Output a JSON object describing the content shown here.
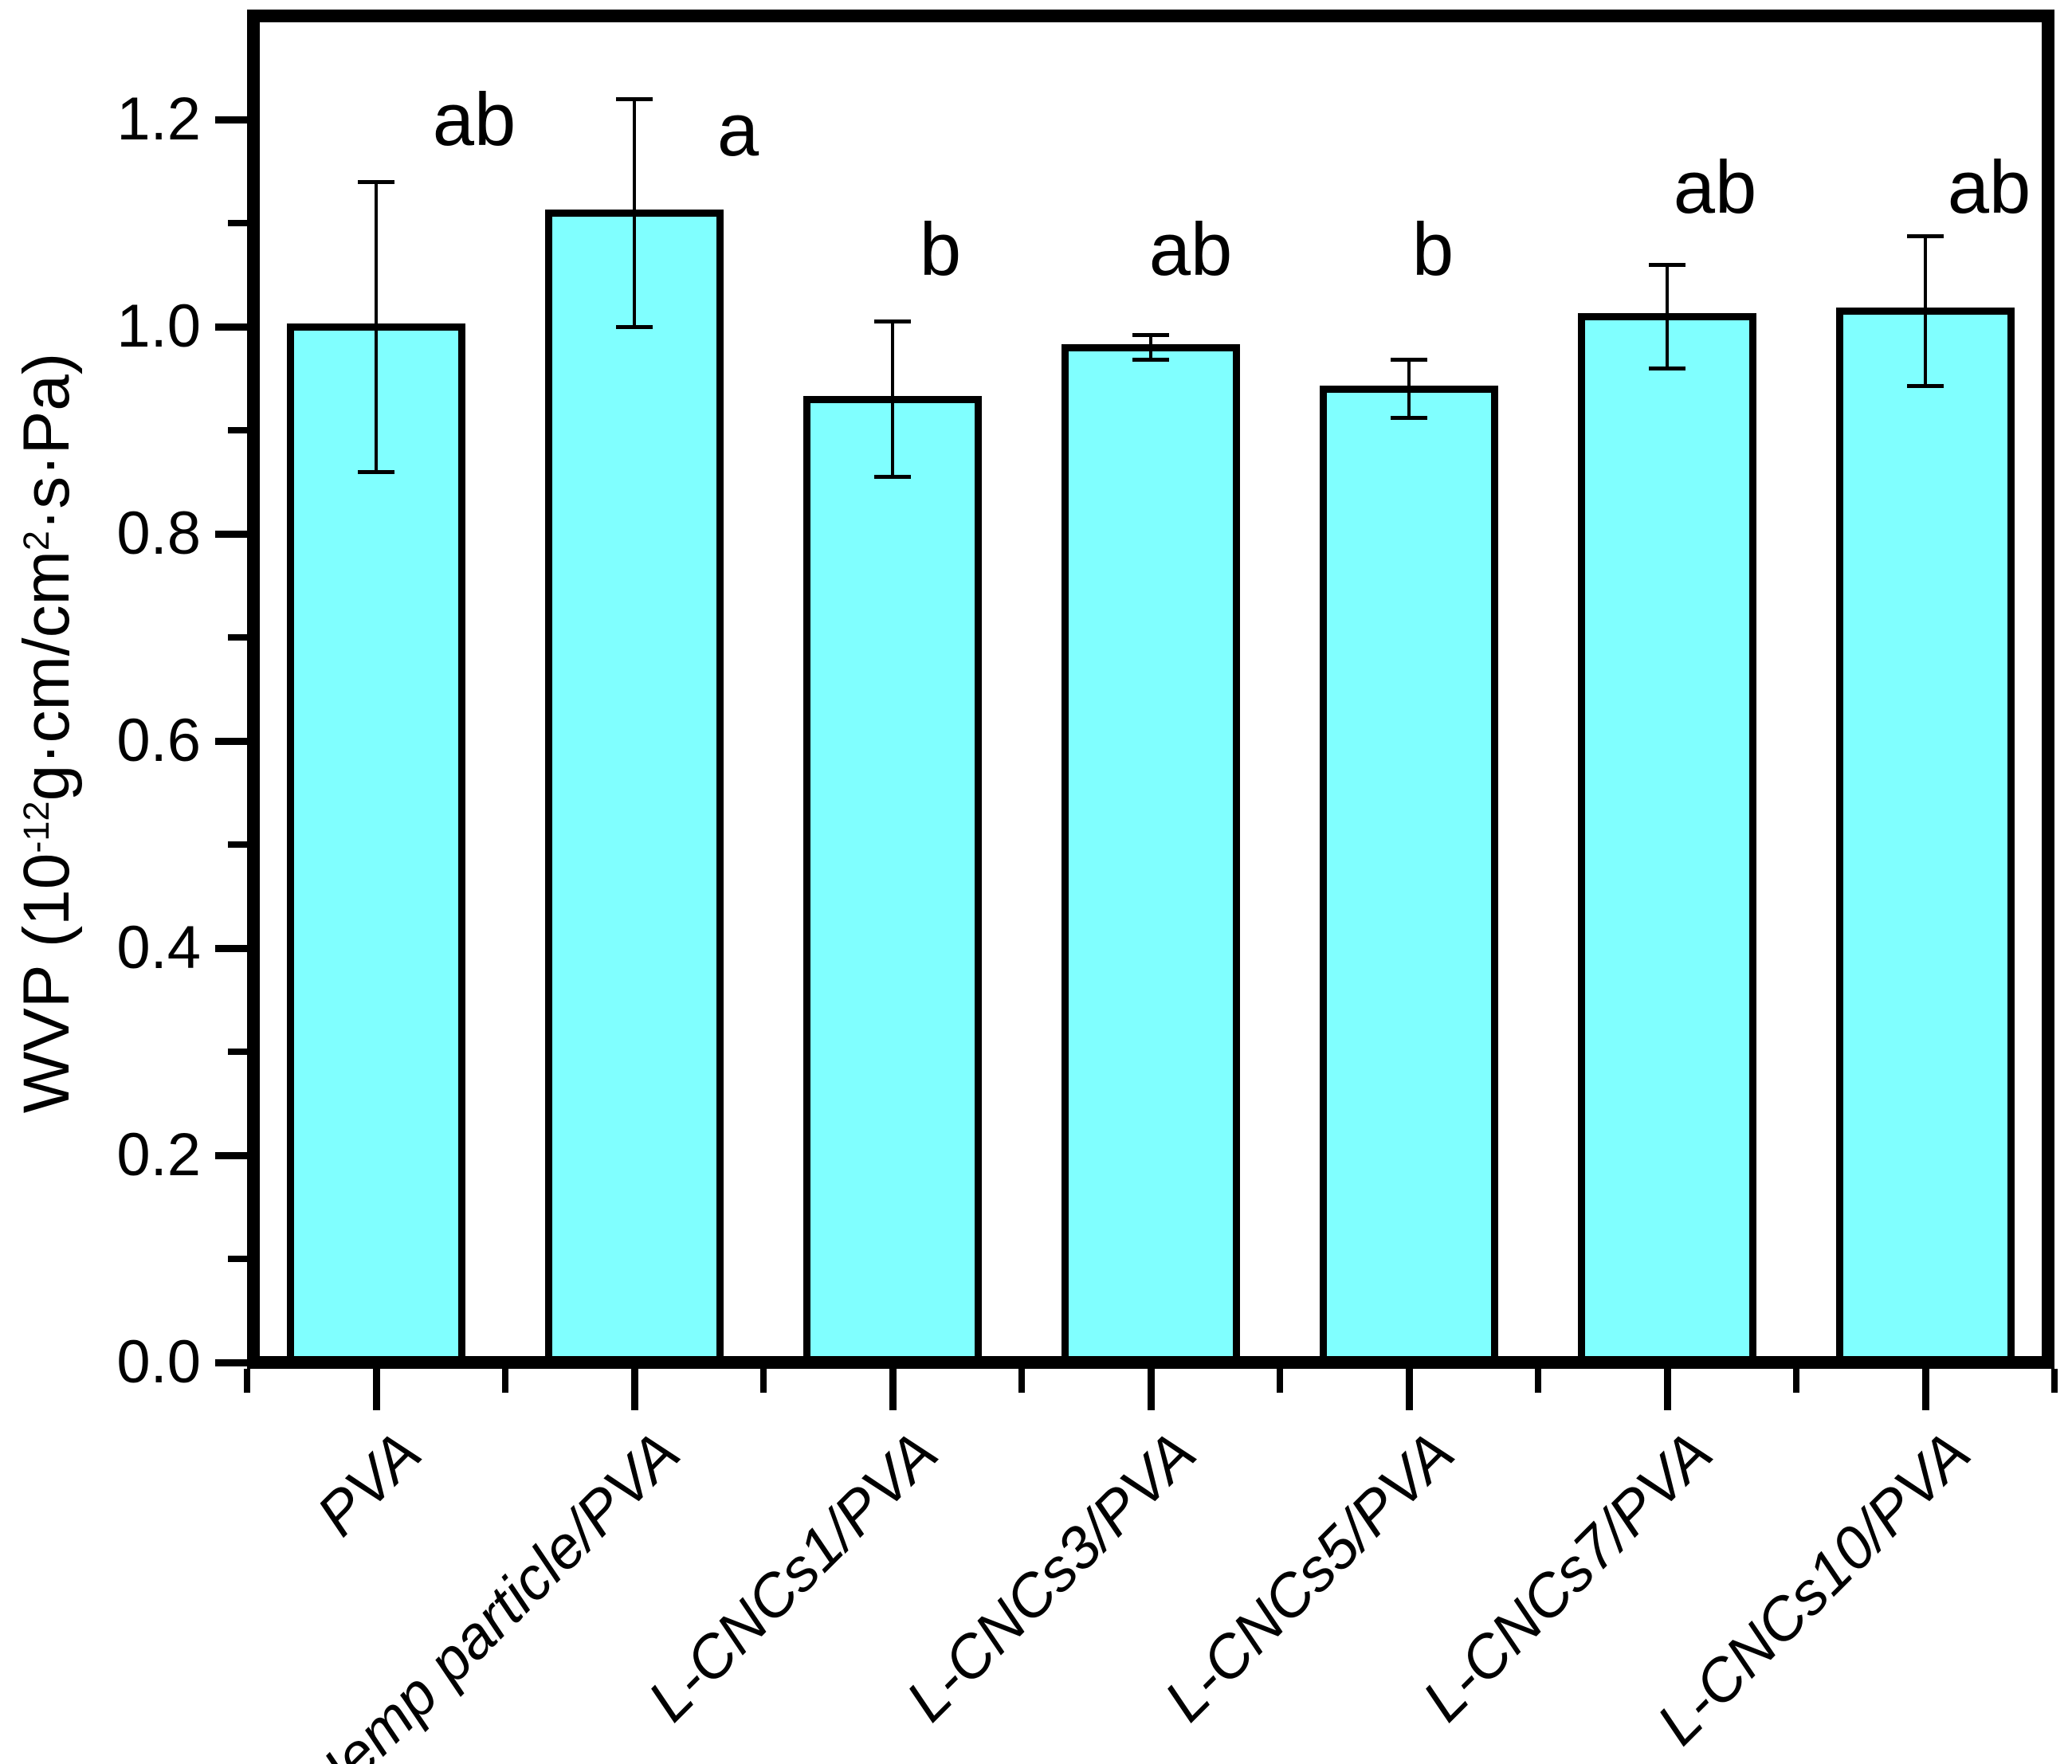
{
  "chart_data": {
    "type": "bar",
    "title": "",
    "xlabel": "",
    "ylabel": "WVP (10⁻¹²g·cm/cm²·s·Pa)",
    "ylabel_parts": {
      "p1": "WVP (10",
      "sup1": "-12",
      "p2": "g·cm/cm",
      "sup2": "2",
      "p3": "·s·Pa)"
    },
    "categories": [
      "PVA",
      "Hemp particle/PVA",
      "L-CNCs1/PVA",
      "L-CNCs3/PVA",
      "L-CNCs5/PVA",
      "L-CNCs7/PVA",
      "L-CNCs10/PVA"
    ],
    "values": [
      1.0,
      1.11,
      0.93,
      0.98,
      0.94,
      1.01,
      1.015
    ],
    "errors": [
      0.14,
      0.11,
      0.075,
      0.012,
      0.028,
      0.05,
      0.072
    ],
    "sig_letters": [
      "ab",
      "a",
      "b",
      "ab",
      "b",
      "ab",
      "ab"
    ],
    "sig_letter_y": [
      1.2,
      1.19,
      1.075,
      1.075,
      1.075,
      1.135,
      1.135
    ],
    "sig_letter_dx_px": [
      123,
      130,
      60,
      50,
      30,
      60,
      80
    ],
    "ylim": [
      0,
      1.3
    ],
    "ytick_values": [
      0.0,
      0.2,
      0.4,
      0.6,
      0.8,
      1.0,
      1.2
    ],
    "ytick_labels": [
      "0.0",
      "0.2",
      "0.4",
      "0.6",
      "0.8",
      "1.0",
      "1.2"
    ],
    "ytick_minor_values": [
      0.1,
      0.3,
      0.5,
      0.7,
      0.9,
      1.1
    ],
    "grid": false,
    "legend": null,
    "bar_color": "#80FFFF",
    "edge_color": "#000000",
    "frame_color": "#000000",
    "background_color": "#FFFFFF"
  }
}
